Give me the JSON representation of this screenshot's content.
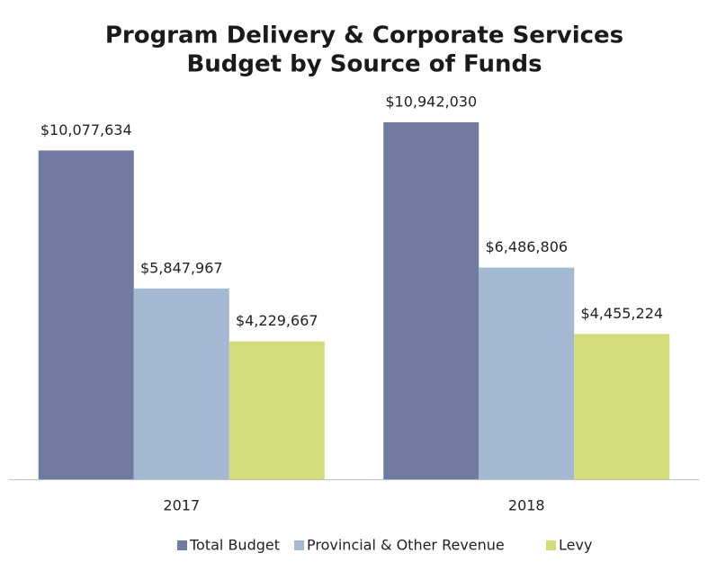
{
  "chart_data": {
    "type": "bar",
    "title": [
      "Program Delivery & Corporate Services",
      "Budget by Source of Funds"
    ],
    "categories": [
      "2017",
      "2018"
    ],
    "series": [
      {
        "name": "Total Budget",
        "color": "#717aa0",
        "values": [
          10077634,
          10942030
        ],
        "value_labels": [
          "$10,077,634",
          "$10,942,030"
        ]
      },
      {
        "name": "Provincial & Other Revenue",
        "color": "#a3b9d1",
        "values": [
          5847967,
          6486806
        ],
        "value_labels": [
          "$5,847,967",
          "$6,486,806"
        ]
      },
      {
        "name": "Levy",
        "color": "#d3db7a",
        "values": [
          4229667,
          4455224
        ],
        "value_labels": [
          "$4,229,667",
          "$4,455,224"
        ]
      }
    ],
    "legend": "bottom"
  }
}
